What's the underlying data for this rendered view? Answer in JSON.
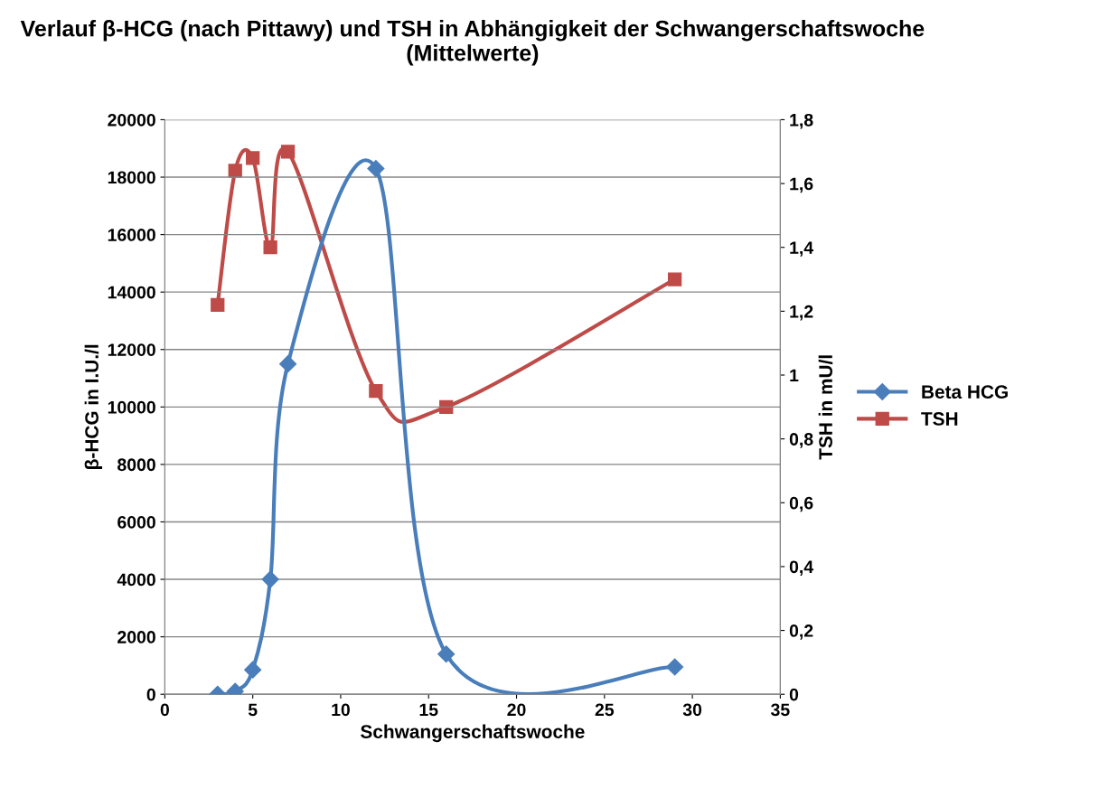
{
  "chart_data": {
    "type": "line",
    "title": "Verlauf β-HCG (nach Pittawy) und TSH in Abhängigkeit der Schwangerschaftswoche (Mittelwerte)",
    "xlabel": "Schwangerschaftswoche",
    "ylabel": "β-HCG in I.U./l",
    "y2label": "TSH in mU/l",
    "series": [
      {
        "name": "Beta HCG",
        "color": "#4a7ebb",
        "marker": "diamond",
        "x": [
          3,
          4,
          5,
          6,
          7,
          12,
          16,
          29
        ],
        "values": [
          0,
          100,
          850,
          4000,
          11500,
          18300,
          1400,
          950
        ]
      },
      {
        "name": "TSH",
        "color": "#be4b48",
        "marker": "square",
        "axis": "y2",
        "x": [
          3,
          4,
          5,
          6,
          7,
          12,
          16,
          29
        ],
        "values": [
          1.22,
          1.64,
          1.68,
          1.4,
          1.7,
          0.95,
          0.9,
          1.3
        ]
      }
    ],
    "xlim": [
      0,
      35
    ],
    "xticks": [
      0,
      5,
      10,
      15,
      20,
      25,
      30,
      35
    ],
    "ylim": [
      0,
      20000
    ],
    "yticks": [
      0,
      2000,
      4000,
      6000,
      8000,
      10000,
      12000,
      14000,
      16000,
      18000,
      20000
    ],
    "y2lim": [
      0,
      1.8
    ],
    "y2ticks": [
      0,
      {
        "value": 0.2,
        "label": "0,2"
      },
      {
        "value": 0.4,
        "label": "0,4"
      },
      {
        "value": 0.6,
        "label": "0,6"
      },
      {
        "value": 0.8,
        "label": "0,8"
      },
      1,
      {
        "value": 1.2,
        "label": "1,2"
      },
      {
        "value": 1.4,
        "label": "1,4"
      },
      {
        "value": 1.6,
        "label": "1,6"
      },
      {
        "value": 1.8,
        "label": "1,8"
      }
    ],
    "grid": "y",
    "legend": "right",
    "line_style": "solid"
  }
}
